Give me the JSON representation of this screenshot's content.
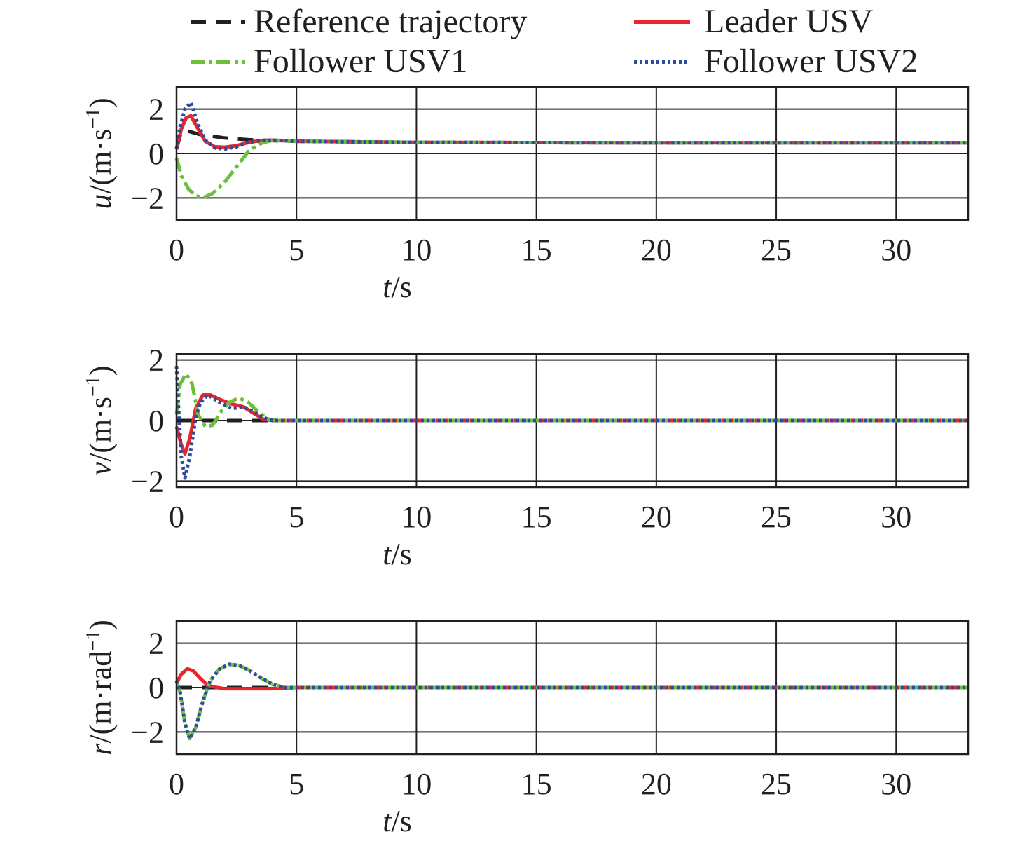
{
  "legend": [
    {
      "label": "Reference trajectory",
      "color": "#231f20",
      "style": "dashed"
    },
    {
      "label": "Leader USV",
      "color": "#e8262d",
      "style": "solid"
    },
    {
      "label": "Follower USV1",
      "color": "#6bbf3c",
      "style": "dashdot"
    },
    {
      "label": "Follower USV2",
      "color": "#2e4a9e",
      "style": "dotted"
    }
  ],
  "chart_data": [
    {
      "type": "line",
      "ylabel_var": "u",
      "ylabel_unit": "/(m·s",
      "ylabel_exp": "−1",
      "ylabel_close": ")",
      "xlabel_var": "t",
      "xlabel_unit": "/s",
      "xlim": [
        0,
        33
      ],
      "ylim": [
        -3,
        3
      ],
      "xticks": [
        0,
        5,
        10,
        15,
        20,
        25,
        30
      ],
      "xtick_labels": [
        "0",
        "5",
        "10",
        "15",
        "20",
        "25",
        "30"
      ],
      "yticks": [
        2,
        0,
        -2
      ],
      "ytick_labels": [
        "2",
        "0",
        "−2"
      ],
      "grid": true,
      "series": [
        {
          "name": "Reference trajectory",
          "x": [
            0,
            0.2,
            0.5,
            1,
            1.5,
            2,
            3,
            4,
            5,
            10,
            20,
            33
          ],
          "y": [
            0.2,
            1.0,
            1.0,
            0.85,
            0.78,
            0.7,
            0.62,
            0.58,
            0.55,
            0.5,
            0.48,
            0.48
          ]
        },
        {
          "name": "Leader USV",
          "x": [
            0,
            0.2,
            0.4,
            0.6,
            0.9,
            1.2,
            1.6,
            2,
            2.5,
            3,
            3.5,
            4,
            5,
            10,
            20,
            33
          ],
          "y": [
            0.2,
            1.1,
            1.6,
            1.7,
            1.1,
            0.55,
            0.3,
            0.28,
            0.35,
            0.5,
            0.58,
            0.6,
            0.55,
            0.5,
            0.48,
            0.48
          ]
        },
        {
          "name": "Follower USV1",
          "x": [
            0,
            0.2,
            0.5,
            0.8,
            1.1,
            1.5,
            2,
            2.5,
            3,
            3.5,
            4,
            5,
            10,
            20,
            33
          ],
          "y": [
            -0.2,
            -1.0,
            -1.6,
            -1.9,
            -2.0,
            -1.8,
            -1.3,
            -0.6,
            0.1,
            0.45,
            0.6,
            0.55,
            0.5,
            0.48,
            0.48
          ]
        },
        {
          "name": "Follower USV2",
          "x": [
            0,
            0.15,
            0.35,
            0.6,
            0.9,
            1.2,
            1.6,
            2,
            2.5,
            3,
            3.5,
            4,
            5,
            10,
            20,
            33
          ],
          "y": [
            0.2,
            1.2,
            2.0,
            2.3,
            1.3,
            0.6,
            0.25,
            0.2,
            0.3,
            0.5,
            0.58,
            0.6,
            0.55,
            0.5,
            0.48,
            0.48
          ]
        }
      ]
    },
    {
      "type": "line",
      "ylabel_var": "v",
      "ylabel_unit": "/(m·s",
      "ylabel_exp": "−1",
      "ylabel_close": ")",
      "xlabel_var": "t",
      "xlabel_unit": "/s",
      "xlim": [
        0,
        33
      ],
      "ylim": [
        -2.2,
        2.2
      ],
      "xticks": [
        0,
        5,
        10,
        15,
        20,
        25,
        30
      ],
      "xtick_labels": [
        "0",
        "5",
        "10",
        "15",
        "20",
        "25",
        "30"
      ],
      "yticks": [
        2,
        0,
        -2
      ],
      "ytick_labels": [
        "2",
        "0",
        "−2"
      ],
      "grid": true,
      "series": [
        {
          "name": "Reference trajectory",
          "x": [
            0,
            0.5,
            1,
            2,
            3,
            3.5,
            4,
            5,
            33
          ],
          "y": [
            0,
            0,
            0,
            0,
            0,
            0,
            0,
            0,
            0
          ]
        },
        {
          "name": "Leader USV",
          "x": [
            0,
            0.2,
            0.35,
            0.55,
            0.8,
            1.1,
            1.4,
            1.8,
            2.3,
            2.8,
            3.2,
            3.6,
            4,
            5,
            33
          ],
          "y": [
            -0.2,
            -0.8,
            -1.1,
            -0.6,
            0.4,
            0.85,
            0.85,
            0.7,
            0.55,
            0.45,
            0.25,
            0.05,
            0,
            0,
            0
          ]
        },
        {
          "name": "Follower USV1",
          "x": [
            0,
            0.15,
            0.4,
            0.65,
            0.9,
            1.2,
            1.5,
            1.9,
            2.2,
            2.6,
            3,
            3.4,
            3.8,
            4.2,
            5,
            33
          ],
          "y": [
            0.2,
            1.2,
            1.55,
            1.2,
            0.2,
            -0.2,
            -0.15,
            0.35,
            0.6,
            0.75,
            0.6,
            0.3,
            0.05,
            0,
            0,
            0
          ]
        },
        {
          "name": "Follower USV2",
          "x": [
            0,
            0.08,
            0.2,
            0.35,
            0.55,
            0.8,
            1.0,
            1.3,
            1.8,
            2.3,
            2.8,
            3.2,
            3.6,
            4,
            5,
            33
          ],
          "y": [
            1.8,
            0.5,
            -1.2,
            -1.9,
            -1.2,
            0.1,
            0.6,
            0.85,
            0.6,
            0.4,
            0.45,
            0.3,
            0.1,
            0,
            0,
            0
          ]
        }
      ]
    },
    {
      "type": "line",
      "ylabel_var": "r",
      "ylabel_unit": "/(m·rad",
      "ylabel_exp": "−1",
      "ylabel_close": ")",
      "xlabel_var": "t",
      "xlabel_unit": "/s",
      "xlim": [
        0,
        33
      ],
      "ylim": [
        -3,
        3
      ],
      "xticks": [
        0,
        5,
        10,
        15,
        20,
        25,
        30
      ],
      "xtick_labels": [
        "0",
        "5",
        "10",
        "15",
        "20",
        "25",
        "30"
      ],
      "yticks": [
        2,
        0,
        -2
      ],
      "ytick_labels": [
        "2",
        "0",
        "−2"
      ],
      "grid": true,
      "series": [
        {
          "name": "Reference trajectory",
          "x": [
            0,
            0.5,
            1,
            2,
            33
          ],
          "y": [
            0,
            0,
            0,
            0,
            0
          ]
        },
        {
          "name": "Leader USV",
          "x": [
            0,
            0.2,
            0.45,
            0.7,
            1.0,
            1.3,
            1.7,
            2,
            3,
            4,
            5,
            33
          ],
          "y": [
            0.2,
            0.6,
            0.85,
            0.75,
            0.4,
            0.1,
            0,
            -0.05,
            -0.05,
            -0.05,
            0,
            0
          ]
        },
        {
          "name": "Follower USV1",
          "x": [
            0,
            0.15,
            0.35,
            0.55,
            0.8,
            1.1,
            1.4,
            1.8,
            2.2,
            2.6,
            3,
            3.5,
            4,
            4.5,
            5,
            33
          ],
          "y": [
            0.3,
            -0.2,
            -1.6,
            -2.3,
            -1.8,
            -0.6,
            0.3,
            0.85,
            1.05,
            1.0,
            0.8,
            0.45,
            0.15,
            0,
            0,
            0
          ]
        },
        {
          "name": "Follower USV2",
          "x": [
            0,
            0.15,
            0.35,
            0.55,
            0.8,
            1.1,
            1.4,
            1.8,
            2.2,
            2.6,
            3,
            3.5,
            4,
            4.5,
            5,
            33
          ],
          "y": [
            0.3,
            -0.2,
            -1.6,
            -2.3,
            -1.8,
            -0.6,
            0.3,
            0.85,
            1.05,
            1.0,
            0.8,
            0.45,
            0.15,
            0,
            0,
            0
          ]
        }
      ]
    }
  ]
}
